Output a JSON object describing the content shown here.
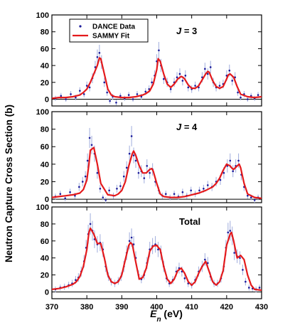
{
  "chart_data": {
    "type": "line",
    "xlabel": {
      "main": "E",
      "sub": "n",
      "unit": " (eV)"
    },
    "ylabel": "Neutron Capture Cross Section (b)",
    "xlim": [
      370,
      430
    ],
    "x_ticks": [
      370,
      380,
      390,
      400,
      410,
      420,
      430
    ],
    "y_ticks": [
      0,
      20,
      40,
      60,
      80,
      100
    ],
    "legend": {
      "placement": "top-left of top panel",
      "entries": [
        {
          "label": "DANCE Data",
          "marker": "point",
          "color": "#1a1a9a"
        },
        {
          "label": "SAMMY Fit",
          "marker": "line",
          "color": "#e41a1c"
        }
      ]
    },
    "colors": {
      "fit": "#e41a1c",
      "data": "#1a1a9a",
      "error_bars": "#a8b4e0",
      "zero_line": "#000000"
    },
    "panels": [
      {
        "annotation": {
          "main": "J",
          "rest": " = 3"
        },
        "ylim": [
          -8,
          100
        ],
        "fit_x": [
          370,
          372,
          374,
          376,
          378,
          379,
          380,
          381,
          382,
          383,
          383.6,
          384,
          385,
          386,
          387,
          388,
          390,
          392,
          394,
          396,
          397,
          398,
          399,
          400,
          400.4,
          401,
          402,
          403,
          404,
          405,
          406,
          407,
          407.5,
          408,
          409,
          410,
          411,
          412,
          413,
          414,
          414.6,
          415,
          416,
          417,
          418,
          419,
          420,
          420.5,
          421,
          422,
          423,
          424,
          426,
          428,
          430
        ],
        "fit_y": [
          1,
          2,
          2,
          3,
          5,
          8,
          12,
          20,
          30,
          40,
          49,
          48,
          30,
          12,
          5,
          3,
          2,
          2,
          3,
          5,
          7,
          10,
          18,
          35,
          48,
          45,
          30,
          18,
          14,
          18,
          24,
          27,
          26,
          24,
          17,
          13,
          13,
          16,
          23,
          30,
          33,
          32,
          22,
          15,
          13,
          15,
          24,
          29,
          30,
          26,
          15,
          6,
          3,
          2,
          3
        ],
        "points": [
          [
            371,
            1
          ],
          [
            372.6,
            4
          ],
          [
            374,
            0
          ],
          [
            375.4,
            6
          ],
          [
            376.8,
            2
          ],
          [
            378,
            10
          ],
          [
            379.2,
            6
          ],
          [
            380,
            16
          ],
          [
            380.8,
            14
          ],
          [
            381.6,
            25
          ],
          [
            382.4,
            38
          ],
          [
            383,
            50
          ],
          [
            383.6,
            55
          ],
          [
            384.2,
            44
          ],
          [
            385,
            20
          ],
          [
            385.8,
            8
          ],
          [
            386.6,
            -2
          ],
          [
            387.4,
            3
          ],
          [
            388.4,
            -4
          ],
          [
            389.6,
            4
          ],
          [
            390.8,
            1
          ],
          [
            392,
            5
          ],
          [
            393.2,
            0
          ],
          [
            394.4,
            6
          ],
          [
            395.6,
            3
          ],
          [
            396.8,
            9
          ],
          [
            397.8,
            12
          ],
          [
            398.6,
            20
          ],
          [
            399.4,
            28
          ],
          [
            400,
            45
          ],
          [
            400.6,
            58
          ],
          [
            401.2,
            40
          ],
          [
            402,
            24
          ],
          [
            403,
            20
          ],
          [
            404,
            12
          ],
          [
            405,
            20
          ],
          [
            405.8,
            26
          ],
          [
            406.6,
            30
          ],
          [
            407.4,
            22
          ],
          [
            408.2,
            28
          ],
          [
            409,
            14
          ],
          [
            410,
            12
          ],
          [
            411,
            16
          ],
          [
            412,
            14
          ],
          [
            413,
            26
          ],
          [
            413.8,
            36
          ],
          [
            414.6,
            30
          ],
          [
            415.4,
            38
          ],
          [
            416.2,
            20
          ],
          [
            417,
            14
          ],
          [
            418,
            16
          ],
          [
            419,
            18
          ],
          [
            420,
            28
          ],
          [
            420.8,
            34
          ],
          [
            421.6,
            22
          ],
          [
            422.4,
            26
          ],
          [
            423.2,
            8
          ],
          [
            424,
            2
          ],
          [
            425,
            6
          ],
          [
            426,
            0
          ],
          [
            427,
            4
          ],
          [
            428,
            1
          ],
          [
            429,
            5
          ]
        ]
      },
      {
        "annotation": {
          "main": "J",
          "rest": " = 4"
        },
        "ylim": [
          -4,
          100
        ],
        "fit_x": [
          370,
          372,
          374,
          376,
          378,
          379,
          380,
          380.6,
          381,
          382,
          383,
          384,
          386,
          388,
          389,
          390,
          391,
          392,
          393,
          393.4,
          394,
          395,
          396,
          397,
          398,
          398.6,
          399,
          400,
          401,
          402,
          404,
          406,
          408,
          410,
          412,
          414,
          416,
          417,
          418,
          419,
          420,
          421,
          421.6,
          422,
          423,
          423.6,
          424,
          425,
          426,
          428,
          430
        ],
        "fit_y": [
          2,
          3,
          4,
          5,
          7,
          11,
          22,
          40,
          56,
          59,
          40,
          18,
          5,
          4,
          6,
          10,
          20,
          38,
          52,
          55,
          50,
          38,
          30,
          30,
          34,
          35,
          32,
          18,
          6,
          3,
          2,
          2,
          3,
          5,
          7,
          10,
          14,
          18,
          24,
          33,
          40,
          38,
          35,
          34,
          38,
          40,
          36,
          18,
          6,
          2,
          1
        ],
        "points": [
          [
            371,
            3
          ],
          [
            372.4,
            6
          ],
          [
            373.8,
            1
          ],
          [
            375.2,
            8
          ],
          [
            376.6,
            4
          ],
          [
            377.8,
            14
          ],
          [
            378.8,
            20
          ],
          [
            379.6,
            26
          ],
          [
            380.2,
            44
          ],
          [
            380.8,
            70
          ],
          [
            381.4,
            62
          ],
          [
            382.2,
            52
          ],
          [
            383,
            30
          ],
          [
            383.8,
            12
          ],
          [
            384.6,
            2
          ],
          [
            385.4,
            -1
          ],
          [
            386.4,
            10
          ],
          [
            387.6,
            4
          ],
          [
            388.6,
            12
          ],
          [
            389.6,
            15
          ],
          [
            390.6,
            26
          ],
          [
            391.4,
            36
          ],
          [
            392.2,
            52
          ],
          [
            392.8,
            72
          ],
          [
            393.4,
            50
          ],
          [
            394,
            44
          ],
          [
            394.8,
            30
          ],
          [
            395.6,
            32
          ],
          [
            396.4,
            24
          ],
          [
            397.2,
            38
          ],
          [
            398,
            30
          ],
          [
            398.8,
            34
          ],
          [
            399.6,
            20
          ],
          [
            400.6,
            10
          ],
          [
            401.6,
            4
          ],
          [
            402.6,
            6
          ],
          [
            403.8,
            2
          ],
          [
            405,
            6
          ],
          [
            406.2,
            3
          ],
          [
            407.4,
            8
          ],
          [
            408.6,
            4
          ],
          [
            409.8,
            10
          ],
          [
            411,
            6
          ],
          [
            412.2,
            10
          ],
          [
            413.4,
            12
          ],
          [
            414.6,
            16
          ],
          [
            415.8,
            14
          ],
          [
            417,
            20
          ],
          [
            418.2,
            22
          ],
          [
            419.2,
            30
          ],
          [
            420.2,
            38
          ],
          [
            421,
            44
          ],
          [
            421.8,
            32
          ],
          [
            422.6,
            38
          ],
          [
            423.4,
            44
          ],
          [
            424.2,
            28
          ],
          [
            425,
            14
          ],
          [
            426,
            4
          ],
          [
            427,
            2
          ],
          [
            428,
            -1
          ],
          [
            429,
            2
          ]
        ]
      },
      {
        "annotation": {
          "main": "Total",
          "rest": ""
        },
        "ylim": [
          -8,
          100
        ],
        "fit_x": [
          370,
          372,
          374,
          376,
          377,
          378,
          379,
          380,
          380.6,
          381,
          382,
          383,
          384,
          385,
          386,
          387,
          388,
          389,
          390,
          391,
          392,
          392.5,
          393,
          394,
          395,
          396,
          397,
          398,
          399,
          400,
          400.5,
          401,
          402,
          403,
          404,
          405,
          406,
          407,
          408,
          409,
          410,
          411,
          412,
          413,
          414,
          415,
          416,
          417,
          418,
          419,
          420,
          421,
          421.4,
          422,
          423,
          424,
          425,
          426,
          427,
          428,
          430
        ],
        "fit_y": [
          3,
          4,
          6,
          9,
          12,
          18,
          30,
          50,
          70,
          75,
          68,
          57,
          57,
          40,
          20,
          12,
          10,
          12,
          20,
          38,
          55,
          58,
          56,
          35,
          15,
          17,
          28,
          48,
          54,
          55,
          52,
          50,
          30,
          15,
          10,
          15,
          25,
          28,
          22,
          12,
          8,
          12,
          22,
          30,
          36,
          24,
          12,
          8,
          12,
          25,
          55,
          68,
          70,
          60,
          40,
          43,
          38,
          20,
          8,
          3,
          2
        ],
        "points": [
          [
            371,
            3
          ],
          [
            372.4,
            5
          ],
          [
            373.6,
            6
          ],
          [
            374.8,
            8
          ],
          [
            375.8,
            10
          ],
          [
            376.8,
            14
          ],
          [
            377.6,
            17
          ],
          [
            378.4,
            24
          ],
          [
            379.2,
            36
          ],
          [
            379.8,
            52
          ],
          [
            380.4,
            68
          ],
          [
            381,
            80
          ],
          [
            381.6,
            72
          ],
          [
            382.2,
            62
          ],
          [
            383,
            56
          ],
          [
            383.8,
            58
          ],
          [
            384.6,
            50
          ],
          [
            385.4,
            30
          ],
          [
            386.2,
            18
          ],
          [
            387,
            12
          ],
          [
            388,
            10
          ],
          [
            389,
            13
          ],
          [
            389.8,
            18
          ],
          [
            390.6,
            30
          ],
          [
            391.4,
            46
          ],
          [
            392.2,
            60
          ],
          [
            392.8,
            64
          ],
          [
            393.4,
            56
          ],
          [
            394,
            40
          ],
          [
            394.8,
            20
          ],
          [
            395.6,
            15
          ],
          [
            396.4,
            20
          ],
          [
            397.2,
            34
          ],
          [
            398,
            50
          ],
          [
            398.8,
            54
          ],
          [
            399.6,
            56
          ],
          [
            400.4,
            50
          ],
          [
            401.2,
            46
          ],
          [
            402,
            30
          ],
          [
            402.8,
            16
          ],
          [
            403.6,
            10
          ],
          [
            404.6,
            14
          ],
          [
            405.6,
            24
          ],
          [
            406.4,
            28
          ],
          [
            407.2,
            24
          ],
          [
            408,
            16
          ],
          [
            409,
            10
          ],
          [
            410,
            8
          ],
          [
            411,
            14
          ],
          [
            412,
            24
          ],
          [
            413,
            30
          ],
          [
            413.8,
            38
          ],
          [
            414.6,
            34
          ],
          [
            415.4,
            18
          ],
          [
            416.4,
            10
          ],
          [
            417.4,
            10
          ],
          [
            418.4,
            16
          ],
          [
            419.2,
            30
          ],
          [
            419.8,
            52
          ],
          [
            420.4,
            70
          ],
          [
            421,
            72
          ],
          [
            421.6,
            66
          ],
          [
            422.2,
            46
          ],
          [
            423,
            42
          ],
          [
            423.8,
            40
          ],
          [
            424.6,
            26
          ],
          [
            425.4,
            12
          ],
          [
            426.4,
            5
          ],
          [
            427.4,
            4
          ],
          [
            428.4,
            3
          ],
          [
            429.4,
            5
          ]
        ]
      }
    ]
  }
}
